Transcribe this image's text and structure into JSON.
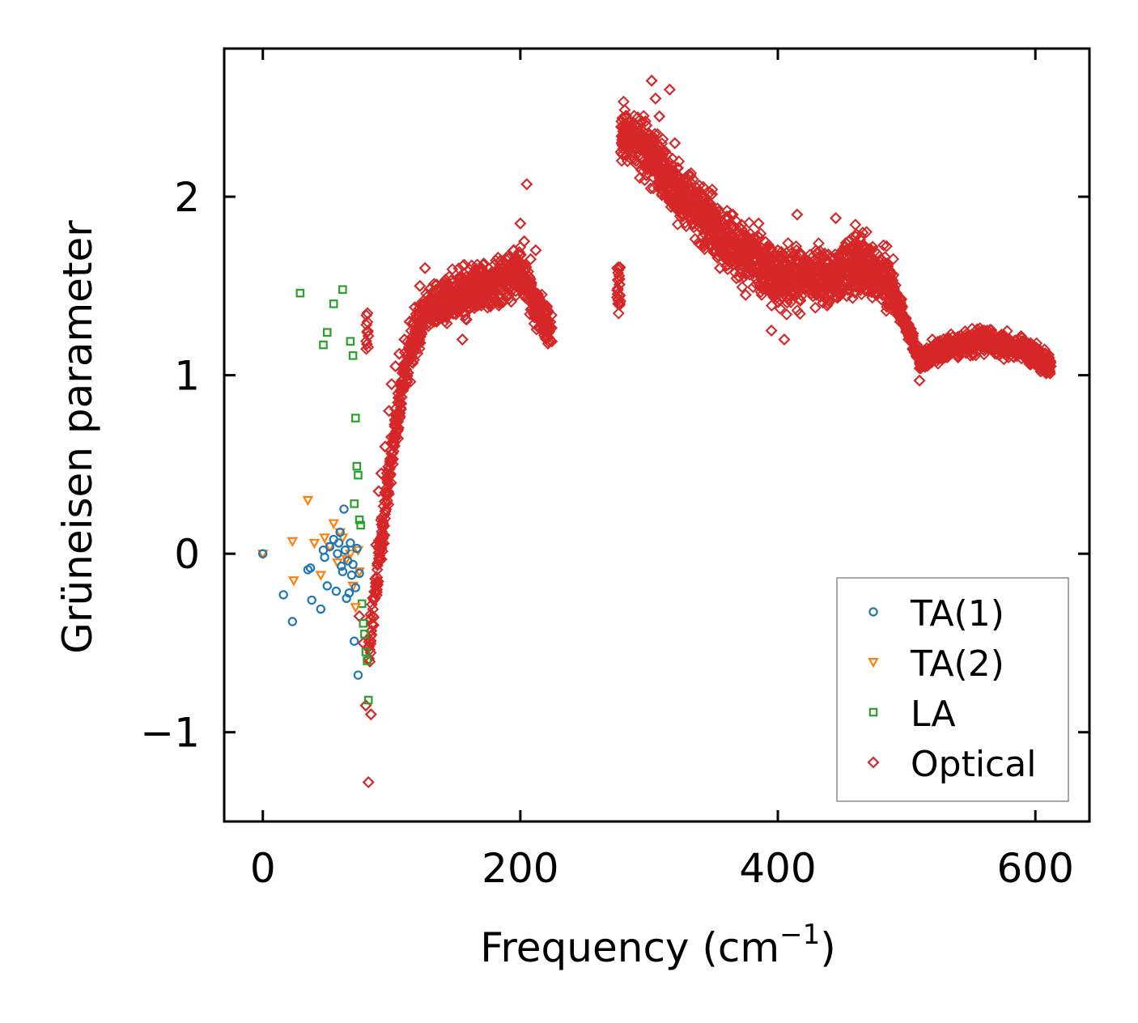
{
  "chart_data": {
    "type": "scatter",
    "title": "",
    "xlabel": "Frequency (cm",
    "xlabel_sup": "−1",
    "xlabel_tail": ")",
    "ylabel": "Grüneisen parameter",
    "xlim": [
      -30,
      642
    ],
    "ylim": [
      -1.5,
      2.83
    ],
    "xticks": [
      0,
      200,
      400,
      600
    ],
    "xtick_labels": [
      "0",
      "200",
      "400",
      "600"
    ],
    "yticks": [
      -1,
      0,
      1,
      2
    ],
    "ytick_labels": [
      "−1",
      "0",
      "1",
      "2"
    ],
    "legend_position": "lower-right",
    "series": [
      {
        "name": "TA(1)",
        "color": "#1f77b4",
        "marker": "circle",
        "x": [
          0,
          16,
          23,
          35,
          38,
          37,
          45,
          47,
          48,
          50,
          52,
          55,
          57,
          58,
          59,
          60,
          61,
          62,
          63,
          64,
          65,
          66,
          67,
          68,
          69,
          70,
          71,
          72,
          73,
          74,
          75
        ],
        "y": [
          0.0,
          -0.23,
          -0.38,
          -0.09,
          -0.26,
          -0.08,
          -0.31,
          0.02,
          -0.02,
          -0.18,
          0.04,
          0.08,
          -0.21,
          0.0,
          0.06,
          0.12,
          -0.07,
          -0.1,
          0.25,
          0.02,
          -0.25,
          -0.04,
          -0.22,
          0.06,
          -0.12,
          -0.06,
          -0.49,
          -0.19,
          0.03,
          -0.68,
          -0.11
        ]
      },
      {
        "name": "TA(2)",
        "color": "#ff7f0e",
        "marker": "triangle-down",
        "x": [
          0,
          23,
          24,
          35,
          40,
          45,
          48,
          52,
          55,
          58,
          60,
          62,
          65,
          68,
          70,
          72,
          74,
          75
        ],
        "y": [
          0.0,
          0.07,
          -0.15,
          0.3,
          0.06,
          -0.12,
          0.09,
          0.04,
          0.17,
          -0.05,
          0.12,
          0.09,
          -0.03,
          0.0,
          -0.18,
          -0.3,
          0.02,
          -0.1
        ]
      },
      {
        "name": "LA",
        "color": "#2ca02c",
        "marker": "square",
        "x": [
          29,
          47,
          50,
          55,
          62,
          68,
          70,
          71,
          72,
          73,
          74,
          75,
          76,
          77,
          78,
          79,
          80,
          81,
          82
        ],
        "y": [
          1.46,
          1.17,
          1.24,
          1.4,
          1.48,
          1.19,
          1.11,
          0.28,
          0.76,
          0.49,
          0.44,
          0.19,
          0.16,
          -0.28,
          -0.39,
          -0.45,
          -0.55,
          -0.6,
          -0.82
        ]
      },
      {
        "name": "Optical",
        "color": "#d62728",
        "marker": "diamond",
        "x": [
          75,
          78,
          80,
          82,
          84,
          86,
          88,
          90,
          92,
          95,
          98,
          100,
          103,
          106,
          110,
          114,
          118,
          122,
          126,
          130,
          135,
          140,
          145,
          150,
          155,
          160,
          165,
          170,
          175,
          180,
          185,
          190,
          195,
          200,
          203,
          205,
          208,
          212,
          216,
          222,
          278,
          282,
          286,
          290,
          294,
          298,
          302,
          305,
          308,
          312,
          316,
          320,
          325,
          330,
          335,
          340,
          345,
          350,
          355,
          360,
          365,
          370,
          375,
          380,
          385,
          390,
          395,
          400,
          405,
          410,
          415,
          420,
          425,
          430,
          435,
          440,
          445,
          450,
          455,
          460,
          465,
          470,
          475,
          480,
          485,
          490,
          495,
          500,
          505,
          510,
          515,
          520,
          530,
          540,
          550,
          560,
          570,
          580,
          590,
          600,
          605,
          612
        ],
        "y": [
          -0.35,
          -0.5,
          -0.85,
          -1.28,
          -0.9,
          -0.4,
          0.05,
          0.35,
          0.45,
          0.6,
          0.8,
          0.95,
          1.05,
          1.12,
          1.2,
          1.3,
          1.38,
          1.5,
          1.6,
          1.4,
          1.3,
          1.45,
          1.35,
          1.5,
          1.2,
          1.5,
          1.55,
          1.6,
          1.4,
          1.62,
          1.55,
          1.6,
          1.7,
          1.85,
          1.75,
          2.07,
          1.65,
          1.7,
          1.4,
          1.25,
          2.25,
          2.45,
          2.35,
          2.2,
          2.15,
          2.4,
          2.65,
          2.55,
          2.45,
          2.2,
          2.6,
          2.3,
          1.9,
          2.1,
          2.0,
          1.85,
          1.95,
          1.7,
          1.6,
          1.8,
          1.9,
          1.55,
          1.45,
          1.7,
          1.85,
          1.5,
          1.25,
          1.7,
          1.2,
          1.55,
          1.9,
          1.65,
          1.5,
          1.6,
          1.55,
          1.5,
          1.88,
          1.7,
          1.75,
          1.55,
          1.6,
          1.7,
          1.5,
          1.65,
          1.55,
          1.4,
          1.3,
          1.25,
          1.15,
          0.97,
          1.1,
          1.2,
          1.15,
          1.1,
          1.18,
          1.2,
          1.12,
          1.2,
          1.15,
          1.12,
          1.08,
          1.05
        ]
      }
    ],
    "clouds": [
      {
        "series": "Optical",
        "x_min": 80,
        "x_max": 225,
        "shape": "rising-branch",
        "points": [
          [
            82,
            -0.55
          ],
          [
            90,
            -0.05
          ],
          [
            100,
            0.55
          ],
          [
            110,
            1.0
          ],
          [
            125,
            1.35
          ],
          [
            150,
            1.45
          ],
          [
            175,
            1.5
          ],
          [
            200,
            1.58
          ],
          [
            222,
            1.25
          ]
        ],
        "spread": 0.12
      },
      {
        "series": "Optical",
        "x_min": 275,
        "x_max": 490,
        "shape": "falling-branch",
        "points": [
          [
            278,
            2.35
          ],
          [
            300,
            2.25
          ],
          [
            320,
            2.05
          ],
          [
            340,
            1.9
          ],
          [
            360,
            1.75
          ],
          [
            380,
            1.65
          ],
          [
            400,
            1.55
          ],
          [
            420,
            1.55
          ],
          [
            440,
            1.55
          ],
          [
            460,
            1.65
          ],
          [
            480,
            1.55
          ],
          [
            490,
            1.5
          ]
        ],
        "spread": 0.16
      },
      {
        "series": "Optical",
        "x_min": 490,
        "x_max": 612,
        "shape": "tail",
        "points": [
          [
            490,
            1.45
          ],
          [
            500,
            1.28
          ],
          [
            510,
            1.08
          ],
          [
            530,
            1.15
          ],
          [
            560,
            1.2
          ],
          [
            590,
            1.15
          ],
          [
            612,
            1.05
          ]
        ],
        "spread": 0.06
      }
    ]
  }
}
